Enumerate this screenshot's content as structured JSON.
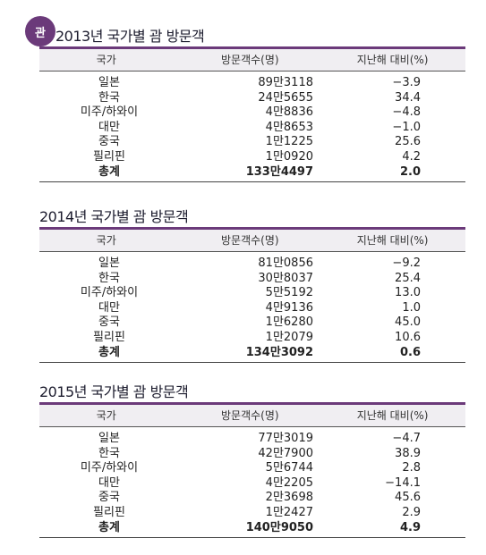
{
  "badge": "관",
  "tables": [
    {
      "title": "2013년 국가별 괌 방문객",
      "headers": {
        "country": "국가",
        "visitors": "방문객수(명)",
        "change": "지난해 대비(%)"
      },
      "rows": [
        {
          "country": "일본",
          "visitors": "89만3118",
          "change": "−3.9"
        },
        {
          "country": "한국",
          "visitors": "24만5655",
          "change": "34.4"
        },
        {
          "country": "미주/하와이",
          "visitors": "4만8836",
          "change": "−4.8"
        },
        {
          "country": "대만",
          "visitors": "4만8653",
          "change": "−1.0"
        },
        {
          "country": "중국",
          "visitors": "1만1225",
          "change": "25.6"
        },
        {
          "country": "필리핀",
          "visitors": "1만0920",
          "change": "4.2"
        },
        {
          "country": "총계",
          "visitors": "133만4497",
          "change": "2.0"
        }
      ]
    },
    {
      "title": "2014년 국가별 괌 방문객",
      "headers": {
        "country": "국가",
        "visitors": "방문객수(명)",
        "change": "지난해 대비(%)"
      },
      "rows": [
        {
          "country": "일본",
          "visitors": "81만0856",
          "change": "−9.2"
        },
        {
          "country": "한국",
          "visitors": "30만8037",
          "change": "25.4"
        },
        {
          "country": "미주/하와이",
          "visitors": "5만5192",
          "change": "13.0"
        },
        {
          "country": "대만",
          "visitors": "4만9136",
          "change": "1.0"
        },
        {
          "country": "중국",
          "visitors": "1만6280",
          "change": "45.0"
        },
        {
          "country": "필리핀",
          "visitors": "1만2079",
          "change": "10.6"
        },
        {
          "country": "총계",
          "visitors": "134만3092",
          "change": "0.6"
        }
      ]
    },
    {
      "title": "2015년 국가별 괌 방문객",
      "headers": {
        "country": "국가",
        "visitors": "방문객수(명)",
        "change": "지난해 대비(%)"
      },
      "rows": [
        {
          "country": "일본",
          "visitors": "77만3019",
          "change": "−4.7"
        },
        {
          "country": "한국",
          "visitors": "42만7900",
          "change": "38.9"
        },
        {
          "country": "미주/하와이",
          "visitors": "5만6744",
          "change": "2.8"
        },
        {
          "country": "대만",
          "visitors": "4만2205",
          "change": "−14.1"
        },
        {
          "country": "중국",
          "visitors": "2만3698",
          "change": "45.6"
        },
        {
          "country": "필리핀",
          "visitors": "1만2427",
          "change": "2.9"
        },
        {
          "country": "총계",
          "visitors": "140만9050",
          "change": "4.9"
        }
      ]
    }
  ]
}
